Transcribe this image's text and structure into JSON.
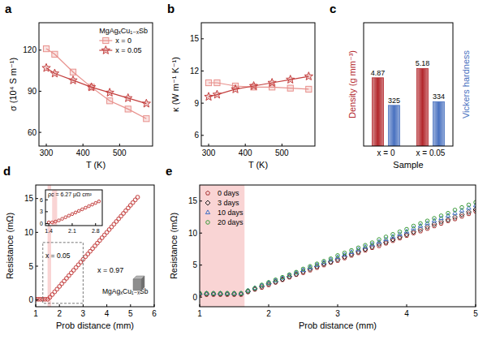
{
  "chart_data": [
    {
      "panel": "a",
      "type": "line",
      "xlabel": "T (K)",
      "ylabel": "σ (10⁴ S m⁻¹)",
      "xlim": [
        280,
        590
      ],
      "xticks": [
        300,
        400,
        500
      ],
      "ylim": [
        50,
        140
      ],
      "yticks": [
        60,
        90,
        120
      ],
      "grid": false,
      "legend": "upper right",
      "legend_title": "MgAgₓCu₁₋ₓSb",
      "x": [
        300,
        323,
        373,
        423,
        473,
        523,
        573
      ],
      "series": [
        {
          "name": "x = 0",
          "color": "#e8908c",
          "marker": "square",
          "values": [
            121,
            117,
            104,
            93,
            83,
            77,
            70
          ]
        },
        {
          "name": "x = 0.05",
          "color": "#c4403f",
          "marker": "star",
          "values": [
            107,
            103,
            98,
            93,
            89,
            85,
            81
          ]
        }
      ]
    },
    {
      "panel": "b",
      "type": "line",
      "xlabel": "T (K)",
      "ylabel": "κ (W m⁻¹ K⁻¹)",
      "xlim": [
        280,
        590
      ],
      "xticks": [
        300,
        400,
        500
      ],
      "ylim": [
        5,
        16.5
      ],
      "yticks": [
        6,
        9,
        12,
        15
      ],
      "grid": false,
      "x": [
        300,
        323,
        373,
        423,
        473,
        523,
        573
      ],
      "series": [
        {
          "color": "#e8908c",
          "marker": "square",
          "values": [
            10.9,
            10.9,
            10.6,
            10.5,
            10.5,
            10.4,
            10.3
          ]
        },
        {
          "color": "#c4403f",
          "marker": "star",
          "values": [
            9.6,
            9.8,
            10.3,
            10.6,
            10.9,
            11.2,
            11.5
          ]
        }
      ]
    },
    {
      "panel": "c",
      "type": "bar",
      "xlabel": "Sample",
      "ylabel": "Density (g mm⁻³)",
      "y2label": "Vickers hardness",
      "categories": [
        "x = 0",
        "x = 0.05"
      ],
      "ylim": [
        2.6,
        6.7
      ],
      "y2lim": [
        226,
        526
      ],
      "tick_labels": "x",
      "data_labels": true,
      "series": [
        {
          "color": "#b3282d",
          "values": [
            4.87,
            5.18
          ]
        },
        {
          "color": "#4a72c0",
          "axis": "y2",
          "values": [
            325,
            334
          ]
        }
      ]
    },
    {
      "panel": "d",
      "type": "scatter",
      "xlabel": "Prob distance (mm)",
      "ylabel": "Resistance (mΩ)",
      "xlim": [
        1,
        6
      ],
      "xticks": [
        1,
        2,
        3,
        4,
        5,
        6
      ],
      "ylim": [
        -1,
        17
      ],
      "yticks": [
        0,
        5,
        10,
        15
      ],
      "grid": false,
      "highlight": [
        1.5,
        1.65
      ],
      "annotations": [
        "x = 0.05",
        "x = 0.97",
        "MgAgₓCu₁₋ₓSb"
      ],
      "x": [
        1.0,
        1.1,
        1.2,
        1.3,
        1.4,
        1.5,
        1.6,
        1.7,
        1.8,
        1.9,
        2.0,
        2.1,
        2.2,
        2.3,
        2.4,
        2.5,
        2.6,
        2.7,
        2.8,
        2.9,
        3.0,
        3.1,
        3.2,
        3.3,
        3.4,
        3.5,
        3.6,
        3.7,
        3.8,
        3.9,
        4.0,
        4.1,
        4.2,
        4.3,
        4.4,
        4.5,
        4.6,
        4.7,
        4.8,
        4.9,
        5.0,
        5.1,
        5.2,
        5.3
      ],
      "series": [
        {
          "color": "#c4403f",
          "marker": "circle",
          "values": [
            0.1,
            0.1,
            0.1,
            0.1,
            0.1,
            0.1,
            0.4,
            0.8,
            1.2,
            1.6,
            2.0,
            2.4,
            2.8,
            3.2,
            3.6,
            4.0,
            4.4,
            4.8,
            5.2,
            5.6,
            6.0,
            6.4,
            6.8,
            7.2,
            7.6,
            8.0,
            8.4,
            8.8,
            9.2,
            9.6,
            10.0,
            10.4,
            10.8,
            11.2,
            11.6,
            12.0,
            12.4,
            12.8,
            13.2,
            13.6,
            14.0,
            14.4,
            14.8,
            15.2
          ]
        }
      ]
    },
    {
      "type": "scatter",
      "xlim": [
        1.3,
        3.0
      ],
      "xticks": [
        1.4,
        2.1,
        2.8
      ],
      "ylim": [
        -0.5,
        8.5
      ],
      "yticks": [
        0,
        3,
        6
      ],
      "grid": false,
      "highlight": [
        1.5,
        1.65
      ],
      "annotations": [
        "ρc = 6.27 μΩ cm²"
      ],
      "x": [
        1.4,
        1.5,
        1.6,
        1.7,
        1.8,
        1.9,
        2.0,
        2.1,
        2.2,
        2.3,
        2.4,
        2.5,
        2.6,
        2.7,
        2.8,
        2.9
      ],
      "series": [
        {
          "color": "#c4403f",
          "marker": "circle",
          "values": [
            0.3,
            0.3,
            0.5,
            0.8,
            1.2,
            1.6,
            2.0,
            2.4,
            2.8,
            3.2,
            3.6,
            4.0,
            4.4,
            4.8,
            5.2,
            5.6
          ]
        }
      ]
    },
    {
      "panel": "e",
      "type": "scatter",
      "xlabel": "Prob distance (mm)",
      "ylabel": "Resistance (mΩ)",
      "xlim": [
        1,
        5
      ],
      "xticks": [
        1,
        2,
        3,
        4,
        5
      ],
      "ylim": [
        -1.5,
        17.5
      ],
      "yticks": [
        0,
        5,
        10,
        15
      ],
      "grid": false,
      "legend": "upper left",
      "highlight": [
        1,
        1.65
      ],
      "x": [
        1.0,
        1.1,
        1.2,
        1.3,
        1.4,
        1.5,
        1.6,
        1.7,
        1.8,
        1.9,
        2.0,
        2.1,
        2.2,
        2.3,
        2.4,
        2.5,
        2.6,
        2.7,
        2.8,
        2.9,
        3.0,
        3.1,
        3.2,
        3.3,
        3.4,
        3.5,
        3.6,
        3.7,
        3.8,
        3.9,
        4.0,
        4.1,
        4.2,
        4.3,
        4.4,
        4.5,
        4.6,
        4.7,
        4.8,
        4.9,
        5.0
      ],
      "series": [
        {
          "name": "0 days",
          "color": "#a83232",
          "marker": "pentagon",
          "values": [
            0.4,
            0.4,
            0.4,
            0.4,
            0.4,
            0.4,
            0.4,
            0.8,
            1.2,
            1.5,
            1.9,
            2.3,
            2.7,
            3.1,
            3.5,
            3.8,
            4.2,
            4.6,
            5.0,
            5.4,
            5.7,
            6.1,
            6.5,
            6.9,
            7.3,
            7.7,
            8.0,
            8.4,
            8.8,
            9.2,
            9.6,
            10.0,
            10.3,
            10.7,
            11.1,
            11.5,
            11.9,
            12.2,
            12.6,
            13.0,
            13.4
          ]
        },
        {
          "name": "3 days",
          "color": "#222222",
          "marker": "diamond",
          "values": [
            0.5,
            0.5,
            0.5,
            0.5,
            0.5,
            0.5,
            0.5,
            0.9,
            1.3,
            1.7,
            2.1,
            2.4,
            2.8,
            3.2,
            3.6,
            4.0,
            4.4,
            4.8,
            5.2,
            5.5,
            5.9,
            6.3,
            6.7,
            7.1,
            7.5,
            7.9,
            8.3,
            8.6,
            9.0,
            9.4,
            9.8,
            10.2,
            10.6,
            11.0,
            11.4,
            11.8,
            12.1,
            12.5,
            12.9,
            13.3,
            13.7
          ]
        },
        {
          "name": "10 days",
          "color": "#3f6fc4",
          "marker": "triangle",
          "values": [
            0.55,
            0.55,
            0.55,
            0.55,
            0.55,
            0.55,
            0.55,
            1.0,
            1.4,
            1.8,
            2.2,
            2.6,
            3.0,
            3.4,
            3.8,
            4.2,
            4.6,
            5.0,
            5.4,
            5.8,
            6.2,
            6.6,
            7.0,
            7.4,
            7.8,
            8.2,
            8.6,
            9.0,
            9.4,
            9.8,
            10.2,
            10.7,
            11.1,
            11.5,
            11.9,
            12.3,
            12.7,
            13.1,
            13.5,
            13.9,
            14.3
          ]
        },
        {
          "name": "20 days",
          "color": "#3a9a3a",
          "marker": "circle",
          "values": [
            0.6,
            0.6,
            0.6,
            0.6,
            0.6,
            0.6,
            0.6,
            1.0,
            1.4,
            1.9,
            2.3,
            2.7,
            3.1,
            3.5,
            3.9,
            4.4,
            4.8,
            5.2,
            5.6,
            6.0,
            6.5,
            6.9,
            7.3,
            7.7,
            8.1,
            8.5,
            9.0,
            9.4,
            9.8,
            10.2,
            10.6,
            11.1,
            11.5,
            11.9,
            12.3,
            12.7,
            13.1,
            13.6,
            14.0,
            14.4,
            14.8
          ]
        }
      ]
    }
  ]
}
